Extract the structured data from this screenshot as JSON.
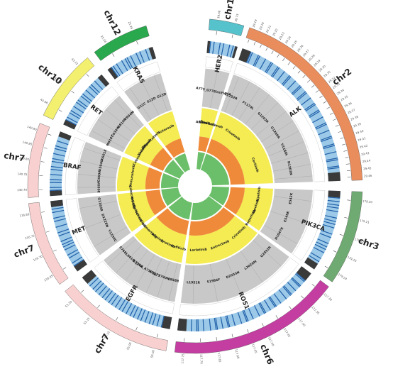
{
  "chromosomes": [
    {
      "id": "chr17",
      "label": "chr17",
      "gene": "HER2",
      "color": "#56c3cc",
      "start": 5,
      "end": 17,
      "ticks": [
        "39.68",
        "39.73"
      ]
    },
    {
      "id": "chr2",
      "label": "chr2",
      "gene": "ALK",
      "color": "#e98d5d",
      "start": 19,
      "end": 88,
      "ticks": [
        "29.19",
        "29.20",
        "29.21",
        "29.22",
        "29.23",
        "29.24",
        "29.25",
        "29.26",
        "29.27",
        "29.28",
        "29.29",
        "29.30",
        "29.31",
        "29.32",
        "29.33",
        "29.34",
        "29.35",
        "29.36",
        "29.37",
        "29.38",
        "29.39",
        "29.40",
        "29.41",
        "29.42",
        "29.43",
        "29.44",
        "29.45",
        "29.46"
      ]
    },
    {
      "id": "chr3",
      "label": "chr3",
      "gene": "PIK3CA",
      "color": "#6faa72",
      "start": 92,
      "end": 125,
      "ticks": [
        "179.20",
        "179.21",
        "179.22",
        "179.23",
        "179.24"
      ]
    },
    {
      "id": "chr6",
      "label": "chr6",
      "gene": "ROS1",
      "color": "#c43da1",
      "start": 127,
      "end": 187,
      "ticks": [
        "117.30",
        "117.35",
        "117.40",
        "117.45",
        "117.50",
        "117.55",
        "117.60",
        "117.65",
        "117.70",
        "117.75"
      ]
    },
    {
      "id": "chr7a",
      "label": "chr7",
      "gene": "EGFR",
      "color": "#f8d0d0",
      "start": 190,
      "end": 231,
      "ticks": [
        "55.00",
        "55.05",
        "55.10",
        "55.15",
        "55.20"
      ]
    },
    {
      "id": "chr7b",
      "label": "chr7",
      "gene": "MET",
      "color": "#f8d0d0",
      "start": 234,
      "end": 264,
      "ticks": [
        "116.65",
        "116.70",
        "116.75",
        "116.80"
      ]
    },
    {
      "id": "chr7c",
      "label": "chr7",
      "gene": "BRAF",
      "color": "#f8d0d0",
      "start": 266,
      "end": 292,
      "ticks": [
        "140.70",
        "140.75",
        "140.80",
        "140.85",
        "140.90"
      ]
    },
    {
      "id": "chr10",
      "label": "chr10",
      "gene": "RET",
      "color": "#f3ef6f",
      "start": 295,
      "end": 320,
      "ticks": [
        "43.08",
        "43.10",
        "43.12"
      ]
    },
    {
      "id": "chr12",
      "label": "chr12",
      "gene": "KRAS",
      "color": "#2aa84d",
      "start": 323,
      "end": 343,
      "ticks": [
        "25.24",
        "25.26"
      ]
    }
  ],
  "mutations": {
    "HER2": [
      "A775_G776insYVMA"
    ],
    "ALK": [
      "L1152R",
      "C1156Y",
      "F1174L",
      "L1196M",
      "G1202R",
      "S1206Y",
      "G1269A",
      "I1171T",
      "V1180L",
      "E1210K",
      "D1203N",
      "T1151M"
    ],
    "PIK3CA": [
      "E542K",
      "E545K",
      "H1047R"
    ],
    "ROS1": [
      "G2032R",
      "L2026M",
      "D2033N",
      "S1986F",
      "L1951R"
    ],
    "EGFR": [
      "L858R",
      "T790M",
      "C797S",
      "E746_A750del",
      "G719X",
      "L861Q",
      "S768I"
    ],
    "MET": [
      "Y1230C",
      "D1228N",
      "G1163R"
    ],
    "BRAF": [
      "V600E",
      "G469A",
      "D594G",
      "K601E"
    ],
    "RET": [
      "M918T",
      "C634W",
      "G810R",
      "V804M"
    ],
    "KRAS": [
      "G12C",
      "G12D",
      "G13D"
    ]
  },
  "drugs": {
    "HER2": [
      "Afatinib",
      "Neratinib",
      "Trastuzumab"
    ],
    "ALK": [
      "Crizotinib",
      "Ceritinib"
    ],
    "PIK3CA": [
      "Alpelisib",
      "Taselisib",
      "Buparlisib"
    ],
    "ROS1": [
      "Crizotinib",
      "Entrectinib",
      "Lorlatinib"
    ],
    "EGFR": [
      "Gefitinib",
      "Erlotinib",
      "Afatinib",
      "Osimertinib"
    ],
    "MET": [
      "Crizotinib",
      "Capmatinib",
      "Tepotinib",
      "Cabozantinib"
    ],
    "BRAF": [
      "Vemurafenib"
    ],
    "RET": [
      "Cabozantinib",
      "Vandetanib",
      "Selpercatinib"
    ],
    "KRAS": [
      "Sotorasib"
    ]
  }
}
